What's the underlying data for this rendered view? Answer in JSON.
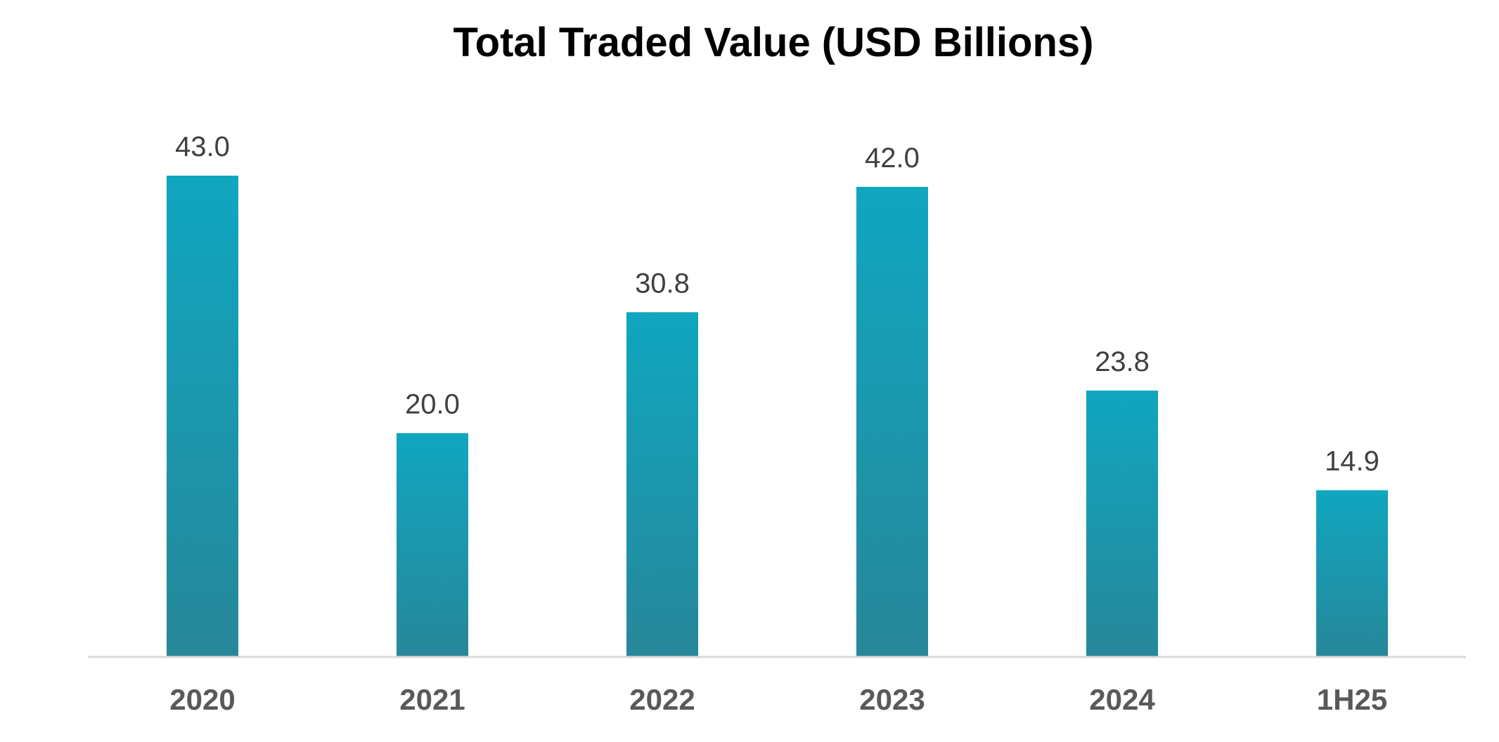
{
  "chart_data": {
    "type": "bar",
    "title": "Total Traded Value (USD Billions)",
    "categories": [
      "2020",
      "2021",
      "2022",
      "2023",
      "2024",
      "1H25"
    ],
    "values": [
      43.0,
      20.0,
      30.8,
      42.0,
      23.8,
      14.9
    ],
    "value_labels": [
      "43.0",
      "20.0",
      "30.8",
      "42.0",
      "23.8",
      "14.9"
    ],
    "xlabel": "",
    "ylabel": "",
    "ylim": [
      0,
      43.0
    ],
    "grid": false,
    "legend": "none",
    "y_axis_visible": false,
    "colors": {
      "bar_top": "#10A6C0",
      "bar_bottom": "#278799",
      "axis_line": "#D9D9D9",
      "title": "#000000",
      "value_label": "#404040",
      "tick_label": "#595959"
    }
  }
}
